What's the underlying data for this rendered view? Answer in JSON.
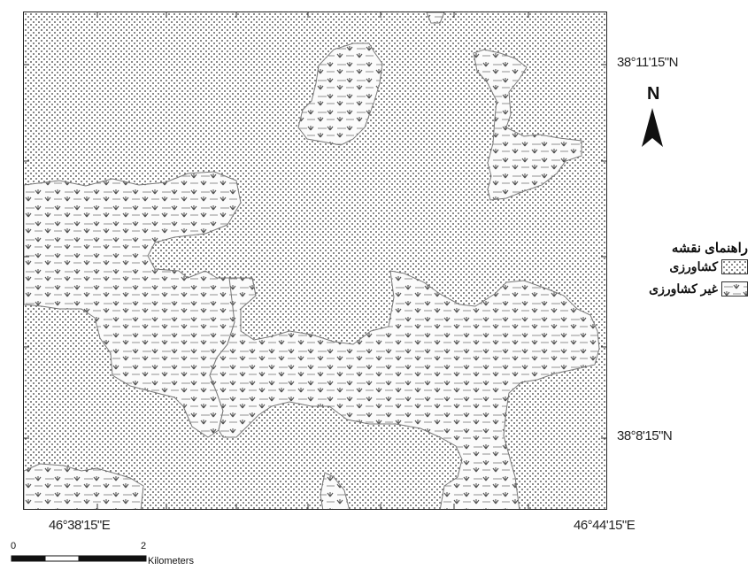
{
  "map": {
    "lat_labels": [
      "38°11'15\"N",
      "38°8'15\"N"
    ],
    "lon_labels": [
      "46°38'15\"E",
      "46°44'15\"E"
    ]
  },
  "legend": {
    "title": "راهنمای نقشه",
    "items": [
      {
        "label": "کشاورزی",
        "pattern": "dots"
      },
      {
        "label": "غیر کشاورزی",
        "pattern": "marsh"
      }
    ]
  },
  "north_arrow": {
    "label": "N"
  },
  "scale_bar": {
    "start": "0",
    "end": "2",
    "unit": "Kilometers"
  }
}
